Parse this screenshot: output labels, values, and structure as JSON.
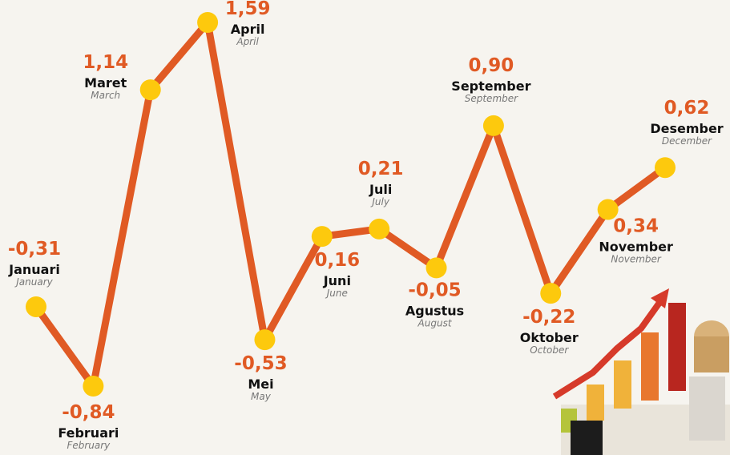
{
  "chart_data": {
    "type": "line",
    "categories": [
      "Januari",
      "Februari",
      "Maret",
      "April",
      "Mei",
      "Juni",
      "Juli",
      "Agustus",
      "September",
      "Oktober",
      "November",
      "Desember"
    ],
    "category_translations": [
      "January",
      "February",
      "March",
      "April",
      "May",
      "June",
      "July",
      "August",
      "September",
      "October",
      "November",
      "December"
    ],
    "values": [
      -0.31,
      -0.84,
      1.14,
      1.59,
      -0.53,
      0.16,
      0.21,
      -0.05,
      0.9,
      -0.22,
      0.34,
      0.62
    ],
    "value_labels": [
      "-0,31",
      "-0,84",
      "1,14",
      "1,59",
      "-0,53",
      "0,16",
      "0,21",
      "-0,05",
      "0,90",
      "-0,22",
      "0,34",
      "0,62"
    ],
    "color": "#e05a24",
    "marker_color": "#fdc90d"
  }
}
